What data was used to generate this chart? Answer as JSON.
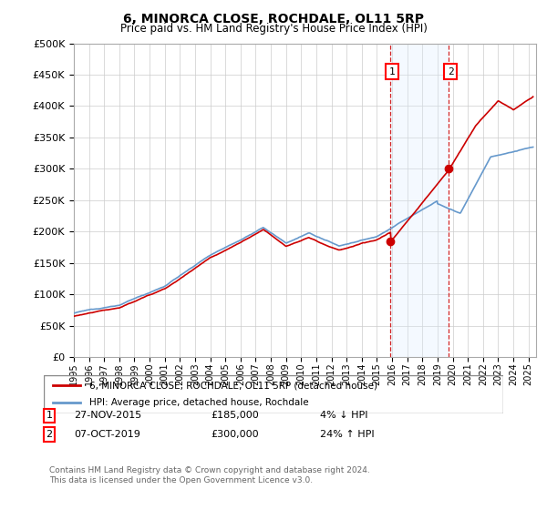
{
  "title": "6, MINORCA CLOSE, ROCHDALE, OL11 5RP",
  "subtitle": "Price paid vs. HM Land Registry's House Price Index (HPI)",
  "ytick_values": [
    0,
    50000,
    100000,
    150000,
    200000,
    250000,
    300000,
    350000,
    400000,
    450000,
    500000
  ],
  "ylim": [
    0,
    500000
  ],
  "xlim_start": 1995.0,
  "xlim_end": 2025.5,
  "hpi_color": "#6699cc",
  "price_color": "#cc0000",
  "sale1_date": 2015.9,
  "sale1_price": 185000,
  "sale2_date": 2019.75,
  "sale2_price": 300000,
  "sale1_label": "1",
  "sale2_label": "2",
  "legend_line1": "6, MINORCA CLOSE, ROCHDALE, OL11 5RP (detached house)",
  "legend_line2": "HPI: Average price, detached house, Rochdale",
  "footer": "Contains HM Land Registry data © Crown copyright and database right 2024.\nThis data is licensed under the Open Government Licence v3.0.",
  "background_color": "#ffffff",
  "grid_color": "#cccccc",
  "shaded_region_color": "#ddeeff"
}
